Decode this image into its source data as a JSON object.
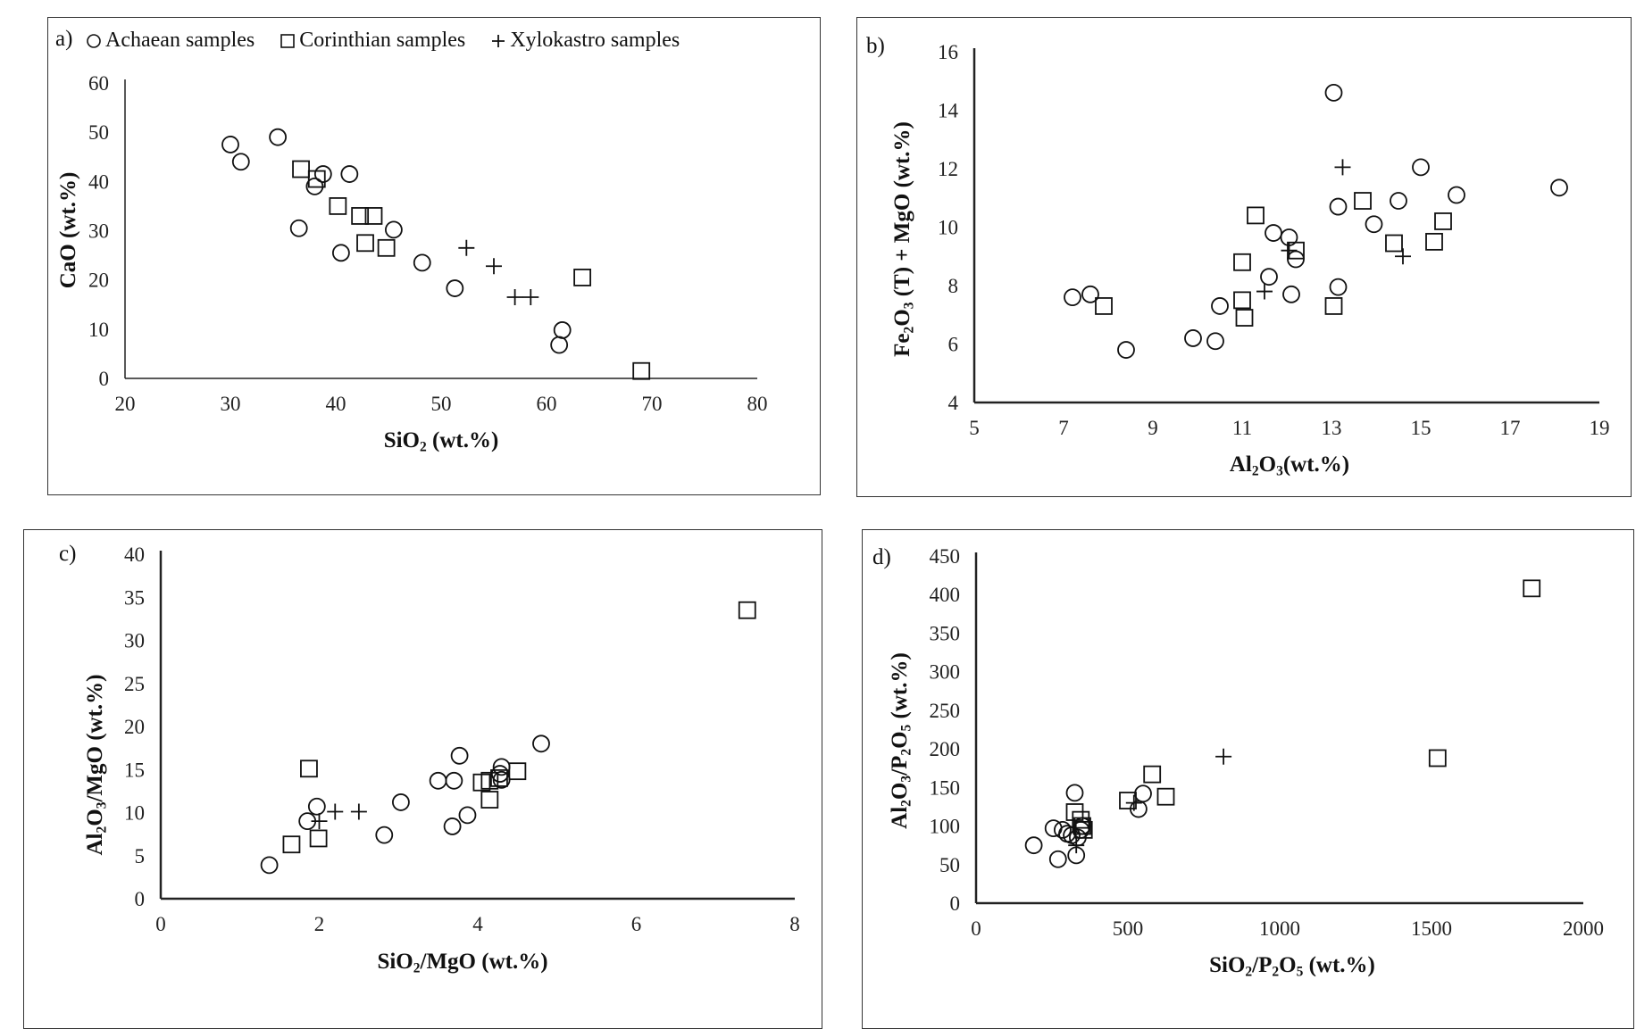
{
  "legend": [
    {
      "label": "Achaean samples",
      "marker": "circle"
    },
    {
      "label": "Corinthian samples",
      "marker": "square"
    },
    {
      "label": "Xylokastro samples",
      "marker": "plus"
    }
  ],
  "chart_data": [
    {
      "panel": "a)",
      "type": "scatter",
      "xlabel": "SiO2 (wt.%)",
      "ylabel": "CaO (wt.%)",
      "xlim": [
        20,
        80
      ],
      "ylim": [
        0,
        60
      ],
      "xticks": [
        20,
        30,
        40,
        50,
        60,
        70,
        80
      ],
      "yticks": [
        0,
        10,
        20,
        30,
        40,
        50,
        60
      ],
      "series": [
        {
          "name": "Achaean samples",
          "marker": "circle",
          "points": [
            [
              30,
              47.5
            ],
            [
              31,
              44
            ],
            [
              34.5,
              49
            ],
            [
              36.5,
              30.5
            ],
            [
              38,
              39
            ],
            [
              38.8,
              41.5
            ],
            [
              41.3,
              41.5
            ],
            [
              40.5,
              25.5
            ],
            [
              45.5,
              30.2
            ],
            [
              48.2,
              23.5
            ],
            [
              51.3,
              18.3
            ],
            [
              61.5,
              9.8
            ],
            [
              61.2,
              6.8
            ]
          ]
        },
        {
          "name": "Corinthian samples",
          "marker": "square",
          "points": [
            [
              36.7,
              42.5
            ],
            [
              38.2,
              40.5
            ],
            [
              40.2,
              35
            ],
            [
              42.3,
              33
            ],
            [
              43.6,
              33
            ],
            [
              42.8,
              27.5
            ],
            [
              44.8,
              26.5
            ],
            [
              63.4,
              20.5
            ],
            [
              69,
              1.5
            ]
          ]
        },
        {
          "name": "Xylokastro samples",
          "marker": "plus",
          "points": [
            [
              52.4,
              26.5
            ],
            [
              55,
              22.8
            ],
            [
              57,
              16.5
            ],
            [
              58.5,
              16.5
            ]
          ]
        }
      ]
    },
    {
      "panel": "b)",
      "type": "scatter",
      "xlabel": "Al2O3(wt.%)",
      "ylabel": "Fe2O3 (T) + MgO (wt.%)",
      "xlim": [
        5,
        19
      ],
      "ylim": [
        4,
        16
      ],
      "xticks": [
        5,
        7,
        9,
        11,
        13,
        15,
        17,
        19
      ],
      "yticks": [
        4,
        6,
        8,
        10,
        12,
        14,
        16
      ],
      "series": [
        {
          "name": "Achaean samples",
          "marker": "circle",
          "points": [
            [
              7.2,
              7.6
            ],
            [
              7.6,
              7.7
            ],
            [
              8.4,
              5.8
            ],
            [
              9.9,
              6.2
            ],
            [
              10.4,
              6.1
            ],
            [
              10.5,
              7.3
            ],
            [
              11.6,
              8.3
            ],
            [
              11.7,
              9.8
            ],
            [
              12.05,
              9.65
            ],
            [
              12.2,
              8.9
            ],
            [
              12.1,
              7.7
            ],
            [
              13.05,
              14.6
            ],
            [
              13.15,
              10.7
            ],
            [
              13.15,
              7.95
            ],
            [
              13.95,
              10.1
            ],
            [
              14.5,
              10.9
            ],
            [
              15.0,
              12.05
            ],
            [
              15.8,
              11.1
            ],
            [
              18.1,
              11.35
            ]
          ]
        },
        {
          "name": "Corinthian samples",
          "marker": "square",
          "points": [
            [
              7.9,
              7.3
            ],
            [
              11.0,
              8.8
            ],
            [
              11.0,
              7.5
            ],
            [
              11.05,
              6.9
            ],
            [
              11.3,
              10.4
            ],
            [
              12.2,
              9.2
            ],
            [
              13.05,
              7.3
            ],
            [
              13.7,
              10.9
            ],
            [
              14.4,
              9.45
            ],
            [
              15.3,
              9.5
            ],
            [
              15.5,
              10.2
            ]
          ]
        },
        {
          "name": "Xylokastro samples",
          "marker": "plus",
          "points": [
            [
              11.5,
              7.8
            ],
            [
              12.05,
              9.2
            ],
            [
              13.25,
              12.05
            ],
            [
              14.6,
              9.0
            ]
          ]
        }
      ]
    },
    {
      "panel": "c)",
      "type": "scatter",
      "xlabel": "SiO2/MgO (wt.%)",
      "ylabel": "Al2O3/MgO (wt.%)",
      "xlim": [
        0,
        8
      ],
      "ylim": [
        0,
        40
      ],
      "xticks": [
        0,
        2,
        4,
        6,
        8
      ],
      "yticks": [
        0,
        5,
        10,
        15,
        20,
        25,
        30,
        35,
        40
      ],
      "series": [
        {
          "name": "Achaean samples",
          "marker": "circle",
          "points": [
            [
              1.37,
              3.9
            ],
            [
              1.85,
              9
            ],
            [
              1.97,
              10.7
            ],
            [
              2.82,
              7.4
            ],
            [
              3.03,
              11.2
            ],
            [
              3.5,
              13.7
            ],
            [
              3.7,
              13.7
            ],
            [
              3.77,
              16.6
            ],
            [
              3.68,
              8.4
            ],
            [
              3.87,
              9.7
            ],
            [
              4.3,
              15.3
            ],
            [
              4.28,
              14.5
            ],
            [
              4.8,
              18
            ],
            [
              4.3,
              13.8
            ]
          ]
        },
        {
          "name": "Corinthian samples",
          "marker": "square",
          "points": [
            [
              1.65,
              6.3
            ],
            [
              1.87,
              15.1
            ],
            [
              1.99,
              7
            ],
            [
              4.05,
              13.5
            ],
            [
              4.15,
              13.7
            ],
            [
              4.15,
              11.5
            ],
            [
              4.27,
              14
            ],
            [
              4.5,
              14.8
            ],
            [
              7.4,
              33.5
            ]
          ]
        },
        {
          "name": "Xylokastro samples",
          "marker": "plus",
          "points": [
            [
              2.0,
              9
            ],
            [
              2.2,
              10.1
            ],
            [
              2.5,
              10.1
            ]
          ]
        }
      ]
    },
    {
      "panel": "d)",
      "type": "scatter",
      "xlabel": "SiO2/P2O5 (wt.%)",
      "ylabel": "Al2O3/P2O5 (wt.%)",
      "xlim": [
        0,
        2000
      ],
      "ylim": [
        0,
        450
      ],
      "xticks": [
        0,
        500,
        1000,
        1500,
        2000
      ],
      "yticks": [
        0,
        50,
        100,
        150,
        200,
        250,
        300,
        350,
        400,
        450
      ],
      "series": [
        {
          "name": "Achaean samples",
          "marker": "circle",
          "points": [
            [
              190,
              75
            ],
            [
              255,
              97
            ],
            [
              270,
              57
            ],
            [
              285,
              95
            ],
            [
              300,
              90
            ],
            [
              315,
              88
            ],
            [
              325,
              143
            ],
            [
              330,
              62
            ],
            [
              335,
              85
            ],
            [
              345,
              95
            ],
            [
              350,
              100
            ],
            [
              550,
              142
            ],
            [
              535,
              122
            ]
          ]
        },
        {
          "name": "Corinthian samples",
          "marker": "square",
          "points": [
            [
              325,
              118
            ],
            [
              345,
              108
            ],
            [
              350,
              100
            ],
            [
              355,
              95
            ],
            [
              500,
              133
            ],
            [
              580,
              167
            ],
            [
              625,
              138
            ],
            [
              1520,
              188
            ],
            [
              1830,
              408
            ]
          ]
        },
        {
          "name": "Xylokastro samples",
          "marker": "plus",
          "points": [
            [
              330,
              75
            ],
            [
              520,
              130
            ],
            [
              815,
              190
            ]
          ]
        }
      ]
    }
  ]
}
